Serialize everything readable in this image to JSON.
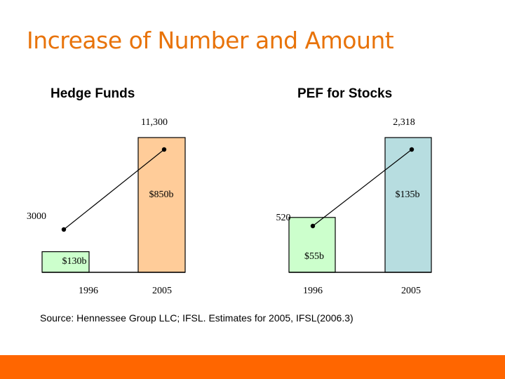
{
  "slide": {
    "title": "Increase of Number and Amount",
    "source": "Source: Hennessee Group LLC; IFSL. Estimates for 2005, IFSL(2006.3)",
    "accent_color": "#e8730a",
    "footer_bar_color": "#ff6600"
  },
  "chart_data": [
    {
      "type": "bar",
      "title": "Hedge Funds",
      "categories": [
        "1996",
        "2005"
      ],
      "series": [
        {
          "values": [
            130,
            850
          ],
          "value_labels": [
            "$130b",
            "$850b"
          ]
        }
      ],
      "line": {
        "values": [
          3000,
          11300
        ],
        "labels": [
          "3000",
          "11,300"
        ]
      },
      "colors": [
        "#ccffcc",
        "#ffcc99"
      ],
      "grid": false
    },
    {
      "type": "bar",
      "title": "PEF for Stocks",
      "categories": [
        "1996",
        "2005"
      ],
      "series": [
        {
          "values": [
            55,
            135
          ],
          "value_labels": [
            "$55b",
            "$135b"
          ]
        }
      ],
      "line": {
        "values": [
          520,
          2318
        ],
        "labels": [
          "520",
          "2,318"
        ]
      },
      "colors": [
        "#ccffcc",
        "#b7dde0"
      ],
      "grid": false
    }
  ]
}
